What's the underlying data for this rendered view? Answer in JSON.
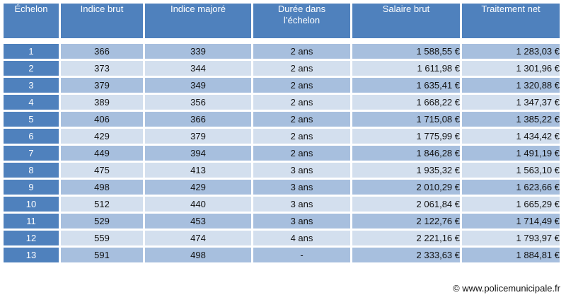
{
  "headers": {
    "echelon": "Échelon",
    "indice_brut": "Indice brut",
    "indice_majore": "Indice majoré",
    "duree_line1": "Durée dans",
    "duree_line2": "l’échelon",
    "salaire_brut": "Salaire brut",
    "traitement_net": "Traitement net"
  },
  "rows": [
    {
      "echelon": "1",
      "indice_brut": "366",
      "indice_majore": "339",
      "duree": "2 ans",
      "salaire_brut": "1 588,55 €",
      "traitement_net": "1 283,03 €"
    },
    {
      "echelon": "2",
      "indice_brut": "373",
      "indice_majore": "344",
      "duree": "2 ans",
      "salaire_brut": "1 611,98 €",
      "traitement_net": "1 301,96 €"
    },
    {
      "echelon": "3",
      "indice_brut": "379",
      "indice_majore": "349",
      "duree": "2 ans",
      "salaire_brut": "1 635,41 €",
      "traitement_net": "1 320,88 €"
    },
    {
      "echelon": "4",
      "indice_brut": "389",
      "indice_majore": "356",
      "duree": "2 ans",
      "salaire_brut": "1 668,22 €",
      "traitement_net": "1 347,37 €"
    },
    {
      "echelon": "5",
      "indice_brut": "406",
      "indice_majore": "366",
      "duree": "2 ans",
      "salaire_brut": "1 715,08 €",
      "traitement_net": "1 385,22 €"
    },
    {
      "echelon": "6",
      "indice_brut": "429",
      "indice_majore": "379",
      "duree": "2 ans",
      "salaire_brut": "1 775,99 €",
      "traitement_net": "1 434,42 €"
    },
    {
      "echelon": "7",
      "indice_brut": "449",
      "indice_majore": "394",
      "duree": "2 ans",
      "salaire_brut": "1 846,28 €",
      "traitement_net": "1 491,19 €"
    },
    {
      "echelon": "8",
      "indice_brut": "475",
      "indice_majore": "413",
      "duree": "3 ans",
      "salaire_brut": "1 935,32 €",
      "traitement_net": "1 563,10 €"
    },
    {
      "echelon": "9",
      "indice_brut": "498",
      "indice_majore": "429",
      "duree": "3 ans",
      "salaire_brut": "2 010,29 €",
      "traitement_net": "1 623,66 €"
    },
    {
      "echelon": "10",
      "indice_brut": "512",
      "indice_majore": "440",
      "duree": "3 ans",
      "salaire_brut": "2 061,84 €",
      "traitement_net": "1 665,29 €"
    },
    {
      "echelon": "11",
      "indice_brut": "529",
      "indice_majore": "453",
      "duree": "3 ans",
      "salaire_brut": "2 122,76 €",
      "traitement_net": "1 714,49 €"
    },
    {
      "echelon": "12",
      "indice_brut": "559",
      "indice_majore": "474",
      "duree": "4 ans",
      "salaire_brut": "2 221,16 €",
      "traitement_net": "1 793,97 €"
    },
    {
      "echelon": "13",
      "indice_brut": "591",
      "indice_majore": "498",
      "duree": "-",
      "salaire_brut": "2 333,63 €",
      "traitement_net": "1 884,81 €"
    }
  ],
  "credit": "©  www.policemunicipale.fr",
  "colors": {
    "header_bg": "#4f81bd",
    "row_dark": "#a7bfde",
    "row_light": "#d3dfee"
  }
}
